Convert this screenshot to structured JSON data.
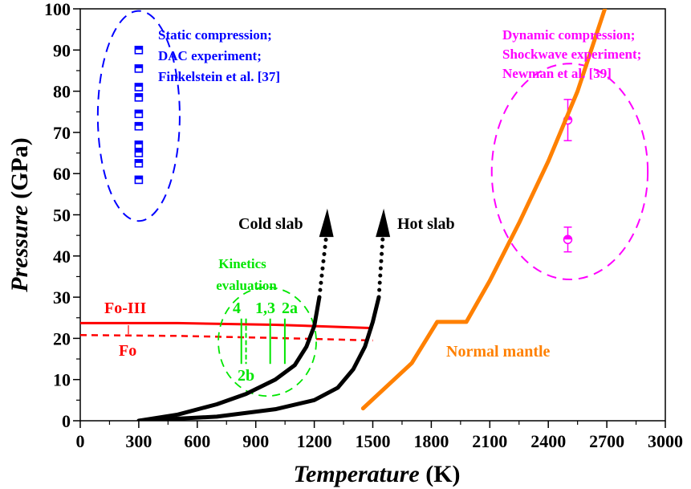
{
  "chart_data": {
    "type": "line",
    "xlabel": {
      "italic": "Temperature",
      "unit": " (K)"
    },
    "ylabel": {
      "italic": "Pressure",
      "unit": " (GPa)"
    },
    "xlim": [
      0,
      3000
    ],
    "ylim": [
      0,
      100
    ],
    "x_ticks": [
      0,
      300,
      600,
      900,
      1200,
      1500,
      1800,
      2100,
      2400,
      2700,
      3000
    ],
    "y_ticks": [
      0,
      10,
      20,
      30,
      40,
      50,
      60,
      70,
      80,
      90,
      100
    ],
    "grid": false,
    "colors": {
      "static": "#0000ff",
      "dynamic": "#ff00ff",
      "mantle": "#ff8000",
      "phase": "#ff0000",
      "kinetics": "#00e600",
      "slab": "#000000"
    },
    "series": [
      {
        "name": "Static compression; DAC experiment; Finkelstein et al. [37]",
        "label_lines": [
          "Static compression;",
          "DAC experiment;",
          "Finkelstein et al. [37]"
        ],
        "kind": "scatter",
        "marker": "half-filled square",
        "points": [
          [
            300,
            90
          ],
          [
            300,
            85.5
          ],
          [
            300,
            81
          ],
          [
            300,
            78.5
          ],
          [
            300,
            74.5
          ],
          [
            300,
            71.5
          ],
          [
            300,
            67
          ],
          [
            300,
            65
          ],
          [
            300,
            62.5
          ],
          [
            300,
            58.5
          ]
        ],
        "enclosing_ellipse": {
          "center": [
            300,
            74
          ],
          "radius_x": 210,
          "radius_y": 25.5
        }
      },
      {
        "name": "Dynamic compression; Shockwave experiment; Newman et al. [39]",
        "label_lines": [
          "Dynamic compression;",
          "Shockwave experiment;",
          "Newman et al. [39]"
        ],
        "kind": "scatter",
        "marker": "half-filled circle",
        "points": [
          {
            "x": 2500,
            "y": 73,
            "ylow": 68,
            "yhigh": 78
          },
          {
            "x": 2500,
            "y": 44,
            "ylow": 41,
            "yhigh": 47
          }
        ],
        "enclosing_ellipse": {
          "center": [
            2510,
            60.5
          ],
          "radius_x": 400,
          "radius_y": 26.2
        }
      },
      {
        "name": "Normal mantle",
        "kind": "line",
        "points": [
          [
            1450,
            3
          ],
          [
            1700,
            14
          ],
          [
            1830,
            24
          ],
          [
            1980,
            24
          ],
          [
            2100,
            34
          ],
          [
            2250,
            48
          ],
          [
            2400,
            63
          ],
          [
            2550,
            80
          ],
          [
            2690,
            100
          ]
        ]
      },
      {
        "name": "Fo-III",
        "kind": "line",
        "style": "solid",
        "points": [
          [
            0,
            23.7
          ],
          [
            500,
            23.7
          ],
          [
            1000,
            23.3
          ],
          [
            1500,
            22.5
          ]
        ]
      },
      {
        "name": "Fo",
        "kind": "line",
        "style": "dashed",
        "points": [
          [
            0,
            20.8
          ],
          [
            500,
            20.6
          ],
          [
            1000,
            20.1
          ],
          [
            1500,
            19.5
          ]
        ]
      },
      {
        "name": "Cold slab",
        "kind": "line",
        "points": [
          [
            300,
            0
          ],
          [
            500,
            1.5
          ],
          [
            700,
            4
          ],
          [
            850,
            6.5
          ],
          [
            1000,
            10
          ],
          [
            1100,
            13.5
          ],
          [
            1160,
            18
          ],
          [
            1200,
            23
          ],
          [
            1226,
            30
          ]
        ],
        "extrapolated": [
          [
            1226,
            30
          ],
          [
            1245,
            38
          ],
          [
            1262,
            45
          ]
        ],
        "arrow_tip": [
          1267,
          51.5
        ]
      },
      {
        "name": "Hot slab",
        "kind": "line",
        "points": [
          [
            300,
            0
          ],
          [
            700,
            1
          ],
          [
            1000,
            2.8
          ],
          [
            1200,
            5
          ],
          [
            1320,
            8
          ],
          [
            1400,
            12.5
          ],
          [
            1460,
            18
          ],
          [
            1500,
            24
          ],
          [
            1531,
            30
          ]
        ],
        "extrapolated": [
          [
            1531,
            30
          ],
          [
            1542,
            38
          ],
          [
            1552,
            45
          ]
        ],
        "arrow_tip": [
          1556,
          51.5
        ]
      }
    ],
    "kinetics": {
      "title_lines": [
        "Kinetics",
        "evaluation"
      ],
      "ellipse": {
        "center": [
          959,
          19.2
        ],
        "radius_x": 251,
        "radius_y": 13.2
      },
      "markers": [
        {
          "label": "4",
          "x": 826,
          "style": "solid"
        },
        {
          "label": "2b",
          "x": 850,
          "style": "dashed"
        },
        {
          "label": "1,3",
          "x": 974,
          "style": "solid"
        },
        {
          "label": "2a",
          "x": 1049,
          "style": "solid"
        }
      ],
      "p_range": [
        13.8,
        24.8
      ]
    }
  }
}
